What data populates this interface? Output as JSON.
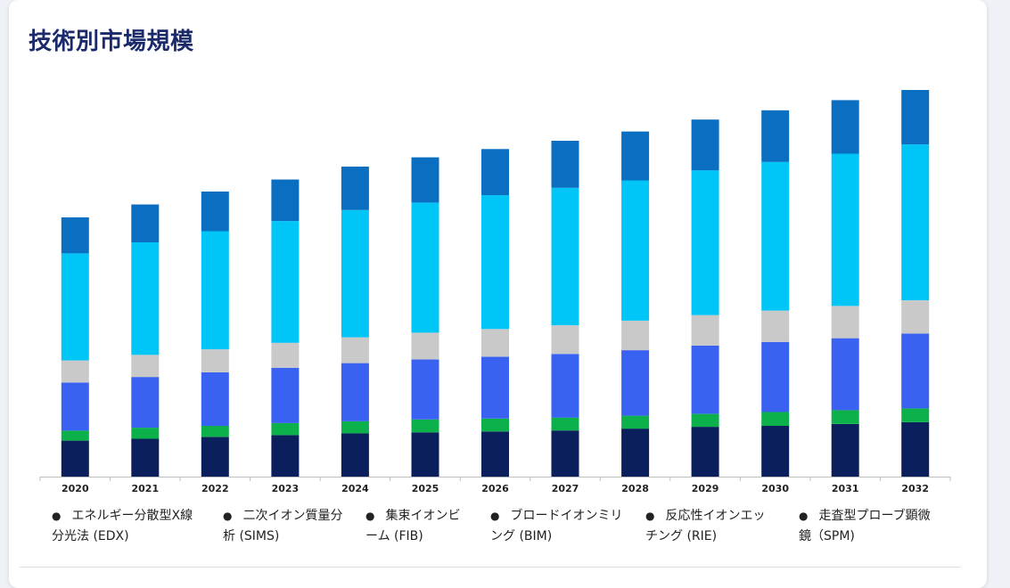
{
  "title": "技術別市場規模",
  "chart_data": {
    "type": "bar",
    "stacked": true,
    "categories": [
      "2020",
      "2021",
      "2022",
      "2023",
      "2024",
      "2025",
      "2026",
      "2027",
      "2028",
      "2029",
      "2030",
      "2031",
      "2032"
    ],
    "series": [
      {
        "name": "走査型プローブ顕微鏡（SPM)",
        "color": "#0a1f5c",
        "values": [
          39,
          41,
          43,
          45,
          47,
          48,
          49,
          50,
          52,
          54,
          55,
          57,
          59
        ]
      },
      {
        "name": "反応性イオンエッチング (RIE)",
        "color": "#0db14b",
        "values": [
          11,
          12,
          12,
          13,
          13,
          14,
          14,
          14,
          14,
          14,
          15,
          15,
          15
        ]
      },
      {
        "name": "ブロードイオンミリング (BIM)",
        "color": "#3a62f2",
        "values": [
          52,
          55,
          58,
          60,
          63,
          65,
          67,
          69,
          71,
          74,
          76,
          78,
          81
        ]
      },
      {
        "name": "集束イオンビーム (FIB)",
        "color": "#c9c9c9",
        "values": [
          24,
          24,
          25,
          27,
          28,
          29,
          30,
          31,
          32,
          33,
          34,
          35,
          36
        ]
      },
      {
        "name": "二次イオン質量分析 (SIMS)",
        "color": "#00c6f8",
        "values": [
          116,
          122,
          128,
          132,
          138,
          141,
          145,
          149,
          152,
          157,
          161,
          165,
          169
        ]
      },
      {
        "name": "エネルギー分散型X線分光法 (EDX)",
        "color": "#0b6fc1",
        "values": [
          39,
          41,
          43,
          45,
          47,
          49,
          50,
          51,
          53,
          55,
          56,
          58,
          59
        ]
      }
    ],
    "legend": {
      "position": "bottom",
      "items": [
        {
          "line1": "エネルギー分散型X線",
          "line2": "分光法 (EDX)"
        },
        {
          "line1": "二次イオン質量分",
          "line2": "析 (SIMS)"
        },
        {
          "line1": "集束イオンビ",
          "line2": "ーム (FIB)"
        },
        {
          "line1": "ブロードイオンミリ",
          "line2": "ング (BIM)"
        },
        {
          "line1": "反応性イオンエッ",
          "line2": "チング (RIE)"
        },
        {
          "line1": "走査型プローブ顕微",
          "line2": "鏡（SPM)"
        }
      ]
    },
    "ylim": [
      0,
      420
    ],
    "grid": false,
    "xlabel": "",
    "ylabel": ""
  }
}
